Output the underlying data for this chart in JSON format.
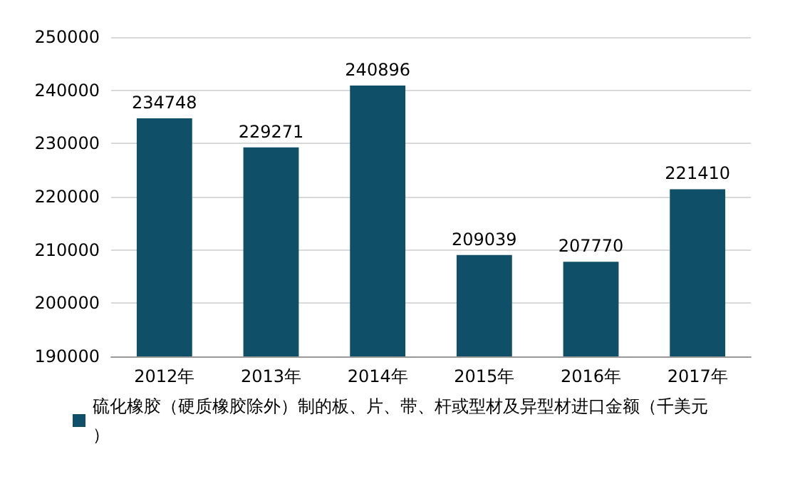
{
  "chart_data": {
    "type": "bar",
    "categories": [
      "2012年",
      "2013年",
      "2014年",
      "2015年",
      "2016年",
      "2017年"
    ],
    "series": [
      {
        "name": "硫化橡胶（硬质橡胶除外）制的板、片、带、杆或型材及异型材进口金额（千美元）",
        "color": "#0f4f68",
        "values": [
          234748,
          229271,
          240896,
          209039,
          207770,
          221410
        ]
      }
    ],
    "ylim": [
      190000,
      250000
    ],
    "yticks": [
      190000,
      200000,
      210000,
      220000,
      230000,
      240000,
      250000
    ],
    "grid": "y",
    "legend": "bottom",
    "data_labels": true
  }
}
